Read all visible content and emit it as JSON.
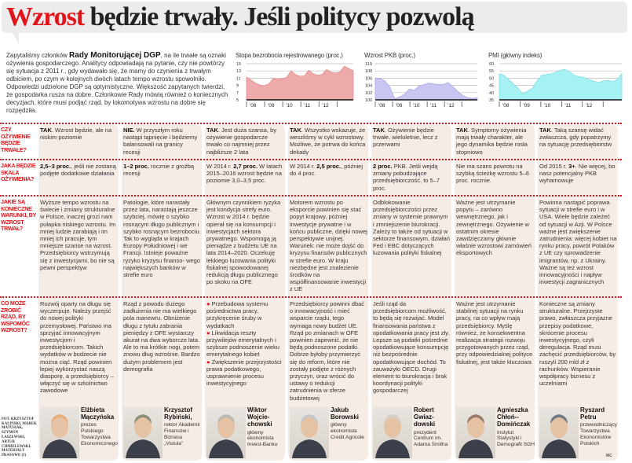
{
  "title": {
    "accent": "Wzrost",
    "rest": " będzie trwały. Jeśli politycy pozwolą"
  },
  "intro": {
    "before": "Zapytaliśmy członków ",
    "bold": "Rady Monitorującej DGP",
    "after": ", na ile trwałe są oznaki ożywienia gospodarczego. Analitycy odpowiadają na pytanie, czy nie powtórzy się sytuacja z 2011 r., gdy wydawało się, że mamy do czynienia z trwałym odbiciem, po czym w kolejnych dwóch latach tempo wzrostu spowolniło. Odpowiedzi udzielone DGP są optymistyczne. Większość zapytanych twierdzi, że gospodarka rusza na dobre. Członkowie Rady mówią również o koniecznych decyzjach, które musi podjąć rząd, by lokomotywa wzrostu na dobre się rozpędziła."
  },
  "chart_data": [
    {
      "type": "area",
      "title": "Stopa bezrobocia rejestrowanego (proc.)",
      "yticks": [
        "15",
        "13",
        "11",
        "9",
        "7",
        "5"
      ],
      "ylim": [
        5,
        15
      ],
      "xticks": [
        "'08",
        "'09",
        "'10",
        "'11",
        "'12"
      ],
      "xrange": [
        2008,
        2013.9
      ],
      "color": "#eeaaaa",
      "line": "#e58a8a",
      "values": [
        11.3,
        10.5,
        9.6,
        9.1,
        8.9,
        9.4,
        10.9,
        10.7,
        10.8,
        11.2,
        13.0,
        12.0,
        11.5,
        11.6,
        13.2,
        12.2,
        11.8,
        12.0,
        13.4,
        12.6,
        12.4,
        12.7,
        14.3,
        13.6,
        13.1
      ]
    },
    {
      "type": "area",
      "title": "Wzrost PKB (proc.)",
      "yticks": [
        "110",
        "108",
        "106",
        "104",
        "102",
        "100"
      ],
      "ylim": [
        100,
        110
      ],
      "xticks": [
        "'08",
        "'09",
        "'10",
        "'11",
        "'12"
      ],
      "xrange": [
        2008,
        2013.9
      ],
      "color": "#c9c6f4",
      "line": "#aaa6ea",
      "values": [
        106.0,
        105.9,
        105.2,
        103.5,
        100.3,
        100.8,
        101.5,
        103.0,
        102.6,
        103.8,
        104.2,
        104.6,
        104.4,
        104.2,
        104.3,
        104.8,
        103.6,
        102.3,
        101.2,
        100.6,
        100.4,
        100.6
      ]
    },
    {
      "type": "area",
      "title": "PMI (główny indeks)",
      "yticks": [
        "60",
        "55",
        "50",
        "45",
        "40",
        "35"
      ],
      "ylim": [
        35,
        60
      ],
      "xticks": [
        "'08",
        "'09",
        "'10",
        "'11",
        "'12"
      ],
      "xrange": [
        2008,
        2013.9
      ],
      "color": "#a6f1f4",
      "line": "#7fdde3",
      "values": [
        53,
        52,
        49,
        46,
        43,
        39,
        41,
        43,
        48,
        52,
        52.5,
        53,
        54,
        55.5,
        56,
        54,
        52,
        51,
        50.5,
        49,
        48,
        47,
        48,
        48.5,
        47.5,
        49,
        53
      ]
    }
  ],
  "questions": [
    "Czy ożywienie będzie trwałe?",
    "Jaka będzie skala ożywienia?",
    "Jakie są konieczne warunki, by wzrost trwał?",
    "Co może zrobić rząd, by wspomóc wzrost?"
  ],
  "experts": [
    {
      "a1_key": "TAK",
      "a1": ". Wzrost będzie, ale na niskim poziomie",
      "a2_bold": "2,5–3 proc.",
      "a2": ", jeśli nie zostaną podjęte dodatkowe działania",
      "a3": "Wyższe tempo wzrostu na świecie i zmiany strukturalne w Polsce, inaczej grozi nam pułapka niskiego wzrostu. Im mniej ludzie zarabiają i im mniej ich pracuje, tym mniejsze szanse na wzrost. Przedsiębiorcy wstrzymują się z inwestycjami, bo nie są pewni perspektyw",
      "a4": "Rozwój oparty na długu się wyczerpuje. Należy przejść do nowej polityki przemysłowej. Państwo ma sprzyjać innowacyjnym inwestycjom i przedsiębiorcom. Takich wydatków w budżecie nie można ciąć. Rząd powinien lepiej wykorzystać naszą diasporę, a przedsiębiorcy – włączyć się w szkolnictwo zawodowe",
      "name": "Elżbieta Mączyńska",
      "role": "prezes Polskiego Towarzystwa Ekonomicznego",
      "photo": "#e7b07a"
    },
    {
      "a1_key": "NIE.",
      "a1": " W przyszłym roku nastąpi tąpnięcie i będziemy balansowali na granicy recesji",
      "a2_bold": "1–2 proc.",
      "a2": " rocznie z groźbą recesji",
      "a3": "Patologie, które narastały przez lata, narastają jeszcze szybciej, mówię o szybko rosnącym długu publicznym i szybko rosnącym bezrobociu. Tak to wygląda w krajach Europy Południowej i we Francji. Istnieje poważne ryzyko kryzysu finanso- wego największych banków w strefie euro",
      "a4": "Rząd z powodu dużego zadłużenia nie ma wielkiego pola manewru. Obniżenie długu z tytułu zabrania pieniędzy z OFE wystarczy akurat na dwa wyborcze lata. Ale to ma krótkie nogi, potem znowu dług wzrośnie. Bardzo dużym problemem jest demografia",
      "name": "Krzysztof Rybiński,",
      "role": "rektor Akademii Finansów i Biznesu „Vistula”",
      "photo": "#8a8f78"
    },
    {
      "a1_key": "TAK",
      "a1": ". Jest duża szansa, by ożywienie gospodarcze trwało co najmniej przez najbliższe 2 lata",
      "a2_pre": "W 2014 r. ",
      "a2_bold": "2,7 proc.",
      "a2": " W latach 2015–2016 wzrost będzie na poziomie 3,0–3,5 proc.",
      "a3": "Głównym czynnikiem ryzyka jest kondycja strefy euro. Wzrost w 2014 r. będzie opierał się na konsumpcji i inwestycjach sektora prywatnego. Wspomogą ją pieniądze z budżetu UE na lata 2014–2020. Oczekuję lekkiego luzowania polityki fiskalnej spowodowanej redukcją długu publicznego po skoku na OFE",
      "a4_bullets": [
        "Przebudowa systemu pośrednictwa pracy, przykręcenie śruby w wydatkach",
        "Likwidacja reszty przywilejów emerytalnych i szybsze podnoszenie wieku emerytalnego kobiet",
        "Zwiększenie przejrzystości prawa podatkowego, usprawnienie procesu inwestycyjnego"
      ],
      "name": "Wiktor Wojcie-chowski",
      "role": "główny ekonomista Invest-Banku",
      "photo": "#b9b8b0"
    },
    {
      "a1_key": "TAK",
      "a1": ". Wszystko wskazuje, że weszliśmy w cykl wzrostowy. Możliwe, że potrwa do końca dekady",
      "a2_pre": "W 2014 r. ",
      "a2_bold": "2,5 proc.",
      "a2": ", później do 4 proc.",
      "a3": "Motorem wzrostu po eksporcie powinien się stać popyt krajowy, później inwestycje prywatne i w końcu publiczne, dzięki nowej perspektywie unijnej. Warunek: nie może dojść do kryzysu finansów publicznych w strefie euro. W kraju niezbędne jest znalezienie środków na współfinansowanie inwestycji z UE",
      "a4": "Przedsiębiorcy powinni dbać o innowacyjność i mieć wsparcie rządu, tego wymaga nowy budżet UE. Rząd po zmianach w OFE powinien zapewnić, że nie będą podnoszone podatki. Dobrze byłoby przymierzyć się do reform, które nie zostały podjęte z różnych przyczyn, oraz wrócić do ustawy o redukcji zatrudnienia w sferze budżetowej",
      "name": "Jakub Borowski",
      "role": "główny ekonomista Credit Agricole",
      "photo": "#c4c6cc"
    },
    {
      "a1_key": "TAK",
      "a1": ". Ożywienie będzie trwałe, wieloletnie, lecz z przerwami",
      "a2_bold": "2 proc.",
      "a2": " PKB. Jeśli wejdą zmiany pobudzające przedsiębiorczość, to 5–7 proc.",
      "a3": "Odblokowanie przedsiębiorczości przez zmiany w systemie prawnym i zmniejszenie biurokracji. Zależy to także od sytuacji w sektorze finansowym, działań Fed i EBC dotyczących luzowania polityki fiskalnej",
      "a4": "Jeśli rząd da przedsiębiorcom możliwość, to będą się rozwijać. Model finansowania państwa z opodatkowania pracy jest zły. Lepsze są podatki pośrednie opodatkowujące konsumpcję niż bezpośrednie opodatkowujące dochód. To zauważyło OECD. Drugi element to biurokracja i brak koordynacji polityki gospodarczej",
      "name": "Robert Gwiaz-dowski",
      "role": "prezydent Centrum im. Adama Smitha",
      "photo": "#d5cfc8"
    },
    {
      "a1_key": "TAK",
      "a1": ". Symptomy ożywienia mają trwały charakter, ale jego dynamika będzie rosła stopniowo",
      "a2": "Nie ma szans powrotu na szybką ścieżkę wzrostu 5–6 proc. rocznie.",
      "a3": "Ważne jest utrzymanie popytu – zarówno wewnętrznego, jak i zewnętrznego. Ożywienie w ostatnim okresie zawdzięczamy głównie właśnie wzrostowi zamówień eksportowych",
      "a4": "Ważne jest utrzymanie stabilnej sytuacji na rynku pracy, na co wpływ mają przedsiębiorcy. Myślę również, że konsekwentna realizacja strategii rozwoju przygotowanych przez rząd, przy odpowiedzialnej polityce fiskalnej, jest także kluczowa",
      "name": "Agnieszka Chłoń--Domińczak",
      "role": "Instytut Statystyki i Demografii SGH",
      "photo": "#9b7a6a"
    },
    {
      "a1_key": "TAK",
      "a1": ". Taką szansę widać zwłaszcza, gdy popatrzymy na sytuację przedsiębiorstw",
      "a2_pre": "Od 2015 r. ",
      "a2_bold": "3+",
      "a2": ". Nie więcej, bo nasz potencjalny PKB wyhamowuje",
      "a3": "Powinna nastąpić poprawa sytuacji w strefie euro i w USA. Wiele będzie zależeć od sytuacji w Azji. W Polsce ważne jest zwiększenie zatrudnienia: więcej kobiet na rynku pracy, powrót Polaków z UE czy sprowadzenie imigrantów, np. z Ukrainy. Ważne są też wzrost innowacyjności i napływ inwestycji zagranicznych",
      "a4": "Konieczne są zmiany strukturalne. Przejrzyste prawo, zwłaszcza przyjazne przepisy podatkowe, skrócenie procesu inwestycyjnego, czyli deregulacja. Rząd musi zachęcić przedsiębiorców, by ruszyli 200 mld zł z rachunków. Wspieranie współpracy biznesu z uczelniami",
      "name": "Ryszard Petru",
      "role": "przewodniczący Towarzystwa Ekonomistów Polskich",
      "photo": "#6f7a86"
    }
  ],
  "credit": "Fot. Krzysztof Kaliński, Marek Matusiak, Szymon Łaszewski, Artur Chmielewski, materiały prasowe (3)",
  "signature": "MC"
}
